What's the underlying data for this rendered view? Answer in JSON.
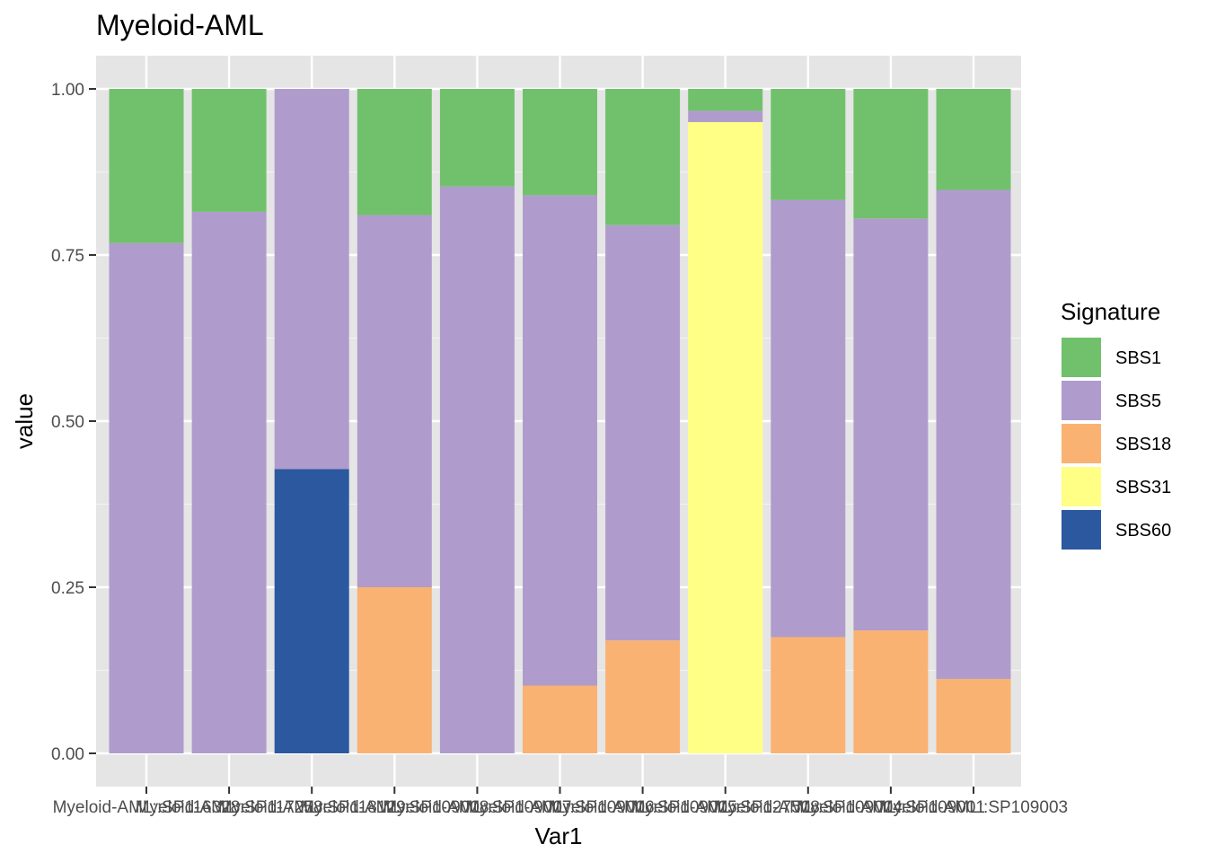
{
  "chart_data": {
    "type": "bar",
    "stacked": true,
    "title": "Myeloid-AML",
    "xlabel": "Var1",
    "ylabel": "value",
    "ylim": [
      0,
      1
    ],
    "yticks": [
      "0.00",
      "0.25",
      "0.50",
      "0.75",
      "1.00"
    ],
    "ytick_values": [
      0,
      0.25,
      0.5,
      0.75,
      1.0
    ],
    "grid": true,
    "categories": [
      "Myeloid-AML::SP116328",
      "Myeloid-AML::SP117258",
      "Myeloid-AML::SP118129",
      "Myeloid-AML::SP109008",
      "Myeloid-AML::SP109007",
      "Myeloid-AML::SP109006",
      "Myeloid-AML::SP109005",
      "Myeloid-AML::SP127508",
      "Myeloid-AML::SP109004",
      "Myeloid-AML::SP109001",
      "Myeloid-AML::SP109003"
    ],
    "legend": {
      "title": "Signature",
      "position": "right",
      "entries": [
        "SBS1",
        "SBS5",
        "SBS18",
        "SBS31",
        "SBS60"
      ]
    },
    "colors": {
      "SBS1": "#71c16c",
      "SBS5": "#af9ccc",
      "SBS18": "#f9b272",
      "SBS31": "#ffff85",
      "SBS60": "#2c58a0"
    },
    "series": [
      {
        "name": "SBS1",
        "values": [
          0.232,
          0.185,
          0.0,
          0.19,
          0.147,
          0.16,
          0.205,
          0.033,
          0.167,
          0.195,
          0.152
        ]
      },
      {
        "name": "SBS5",
        "values": [
          0.768,
          0.815,
          0.572,
          0.56,
          0.853,
          0.738,
          0.625,
          0.017,
          0.658,
          0.62,
          0.736
        ]
      },
      {
        "name": "SBS18",
        "values": [
          0.0,
          0.0,
          0.0,
          0.25,
          0.0,
          0.102,
          0.17,
          0.0,
          0.175,
          0.185,
          0.112
        ]
      },
      {
        "name": "SBS31",
        "values": [
          0.0,
          0.0,
          0.0,
          0.0,
          0.0,
          0.0,
          0.0,
          0.95,
          0.0,
          0.0,
          0.0
        ]
      },
      {
        "name": "SBS60",
        "values": [
          0.0,
          0.0,
          0.428,
          0.0,
          0.0,
          0.0,
          0.0,
          0.0,
          0.0,
          0.0,
          0.0
        ]
      }
    ],
    "stack_order_bottom_to_top": [
      "SBS60",
      "SBS31",
      "SBS18",
      "SBS5",
      "SBS1"
    ]
  }
}
